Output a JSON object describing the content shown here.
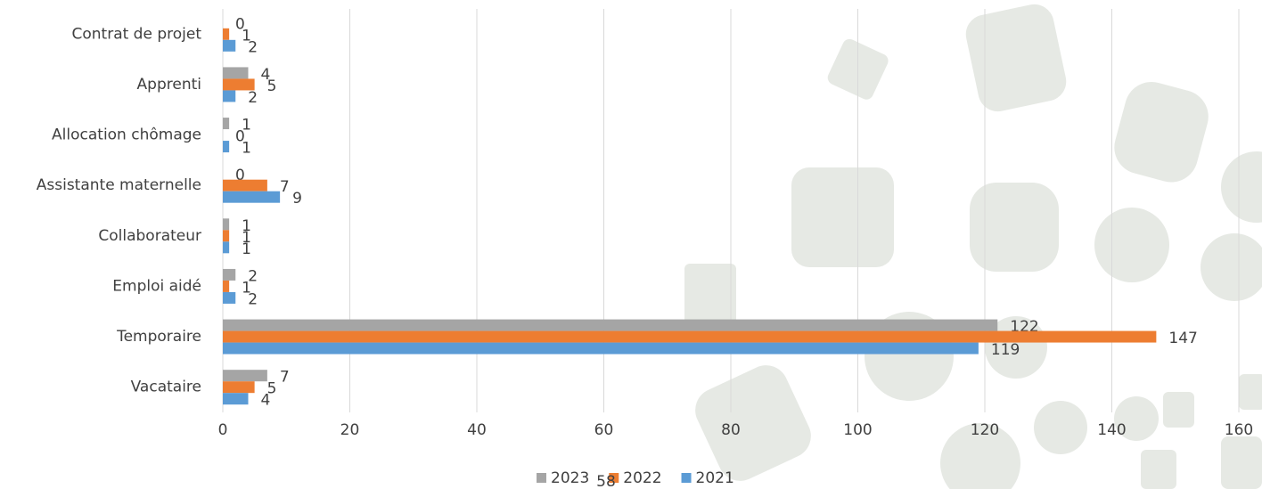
{
  "chart_data": {
    "type": "hbar",
    "categories": [
      "Contrat de projet",
      "Apprenti",
      "Allocation chômage",
      "Assistante maternelle",
      "Collaborateur",
      "Emploi aidé",
      "Temporaire",
      "Vacataire"
    ],
    "series": [
      {
        "name": "2023",
        "color": "#a5a5a5",
        "values": [
          0,
          4,
          1,
          0,
          1,
          2,
          122,
          7
        ]
      },
      {
        "name": "2022",
        "color": "#ed7d31",
        "values": [
          1,
          5,
          0,
          7,
          1,
          1,
          147,
          5
        ]
      },
      {
        "name": "2021",
        "color": "#5b9bd5",
        "values": [
          2,
          2,
          1,
          9,
          1,
          2,
          119,
          4
        ]
      }
    ],
    "xlim": [
      0,
      160
    ],
    "xticks": [
      0,
      20,
      40,
      60,
      80,
      100,
      120,
      140,
      160
    ],
    "grid": true,
    "legend": "bottom"
  },
  "page_number": "58"
}
